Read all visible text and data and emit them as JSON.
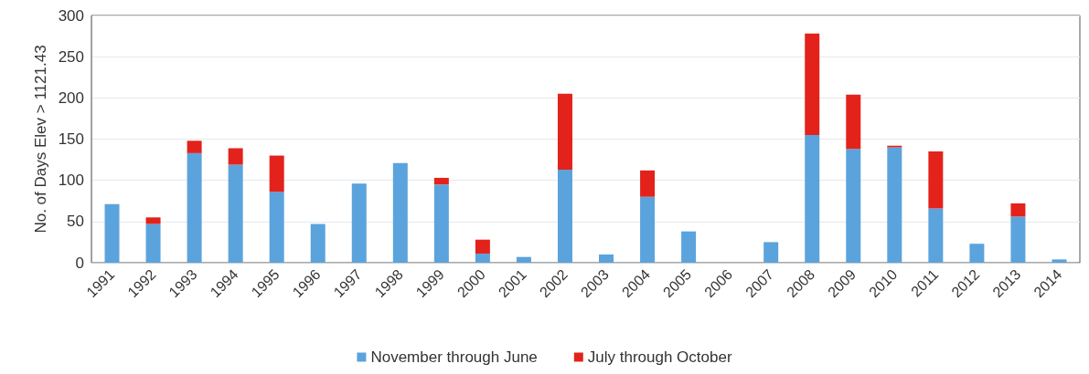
{
  "chart_data": {
    "type": "bar",
    "stacked": true,
    "ylabel": "No. of Days Elev > 1121.43",
    "categories": [
      "1991",
      "1992",
      "1993",
      "1994",
      "1995",
      "1996",
      "1997",
      "1998",
      "1999",
      "2000",
      "2001",
      "2002",
      "2003",
      "2004",
      "2005",
      "2006",
      "2007",
      "2008",
      "2009",
      "2010",
      "2011",
      "2012",
      "2013",
      "2014"
    ],
    "series": [
      {
        "name": "November through June",
        "color": "#5ba3dc",
        "values": [
          71,
          47,
          133,
          119,
          86,
          47,
          96,
          121,
          95,
          11,
          7,
          113,
          10,
          80,
          38,
          0,
          25,
          155,
          138,
          140,
          66,
          23,
          56,
          4
        ]
      },
      {
        "name": "July through October",
        "color": "#e3231b",
        "values": [
          0,
          8,
          15,
          20,
          44,
          0,
          0,
          0,
          8,
          17,
          0,
          92,
          0,
          32,
          0,
          0,
          0,
          123,
          66,
          2,
          69,
          0,
          16,
          0
        ]
      }
    ],
    "ylim": [
      0,
      300
    ],
    "yticks": [
      0,
      50,
      100,
      150,
      200,
      250,
      300
    ],
    "grid": "y",
    "legend": "bottom"
  }
}
